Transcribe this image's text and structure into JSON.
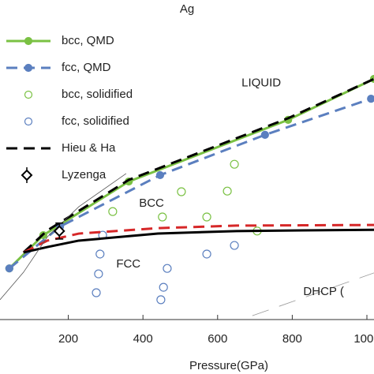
{
  "chart_data": {
    "type": "line",
    "title": "Ag",
    "x_label": "Pressure(GPa)",
    "xlim": [
      17,
      1019
    ],
    "ylim": [
      0,
      100
    ],
    "xticks": [
      200,
      400,
      600,
      800,
      1000
    ],
    "grid": false,
    "legend": "upper left",
    "series": [
      {
        "name": "bcc, QMD",
        "color": "#7ac143",
        "line": "solid",
        "marker": "filled",
        "x": [
          42,
          133,
          362,
          789,
          1019
        ],
        "values": [
          16,
          26.4,
          43.2,
          62.5,
          75.3
        ]
      },
      {
        "name": "fcc, QMD",
        "color": "#5b7fbf",
        "line": "dashed",
        "marker": "filled",
        "x": [
          42,
          178,
          446,
          727,
          1011
        ],
        "values": [
          16,
          29.1,
          45.2,
          57.8,
          69.1
        ]
      },
      {
        "name": "bcc, solidified",
        "color": "#7ac143",
        "line": "none",
        "marker": "open",
        "x": [
          319,
          452,
          503,
          571,
          626,
          645,
          706
        ],
        "values": [
          33.8,
          32.1,
          40,
          32.1,
          40.2,
          48.6,
          27.7
        ]
      },
      {
        "name": "fcc, solidified",
        "color": "#5b7fbf",
        "line": "none",
        "marker": "open",
        "x": [
          292,
          285,
          281,
          275,
          465,
          455,
          448,
          571,
          645
        ],
        "values": [
          26.4,
          20.5,
          14.3,
          8.4,
          16,
          10.1,
          6.2,
          20.5,
          23.2
        ]
      },
      {
        "name": "Hieu & Ha",
        "color": "#000000",
        "line": "dashed",
        "marker": "none",
        "x": [
          80,
          144,
          362,
          789,
          1019
        ],
        "values": [
          21,
          27.9,
          43.7,
          63,
          75.3
        ]
      },
      {
        "color": "#d62728",
        "line": "dashed",
        "marker": "none",
        "x": [
          80,
          144,
          228,
          440,
          651,
          1019
        ],
        "values": [
          21,
          24.7,
          26.9,
          28.6,
          29.4,
          29.6
        ]
      },
      {
        "color": "#000000",
        "line": "solid",
        "marker": "none",
        "x": [
          80,
          144,
          228,
          440,
          651,
          1019
        ],
        "values": [
          21,
          22.7,
          24.7,
          26.9,
          27.7,
          28.1
        ]
      },
      {
        "color": "#555555",
        "line": "thin",
        "marker": "none",
        "x": [
          17,
          80,
          144,
          228,
          355
        ],
        "values": [
          6.2,
          14.8,
          25.9,
          35.3,
          45.7
        ]
      },
      {
        "color": "#999999",
        "line": "longdash",
        "marker": "none",
        "x": [
          693,
          1019
        ],
        "values": [
          1.2,
          14.6
        ]
      }
    ],
    "lyzenga": {
      "name": "Lyzenga",
      "color": "#000000",
      "x": 176,
      "value": 27.7,
      "error": 2.5
    },
    "annotations": [
      {
        "text": "LIQUID",
        "x": 717,
        "y": 74
      },
      {
        "text": "BCC",
        "x": 423,
        "y": 36.3
      },
      {
        "text": "FCC",
        "x": 361,
        "y": 17.3
      },
      {
        "text": "DHCP (",
        "x": 884,
        "y": 8.6
      }
    ]
  }
}
